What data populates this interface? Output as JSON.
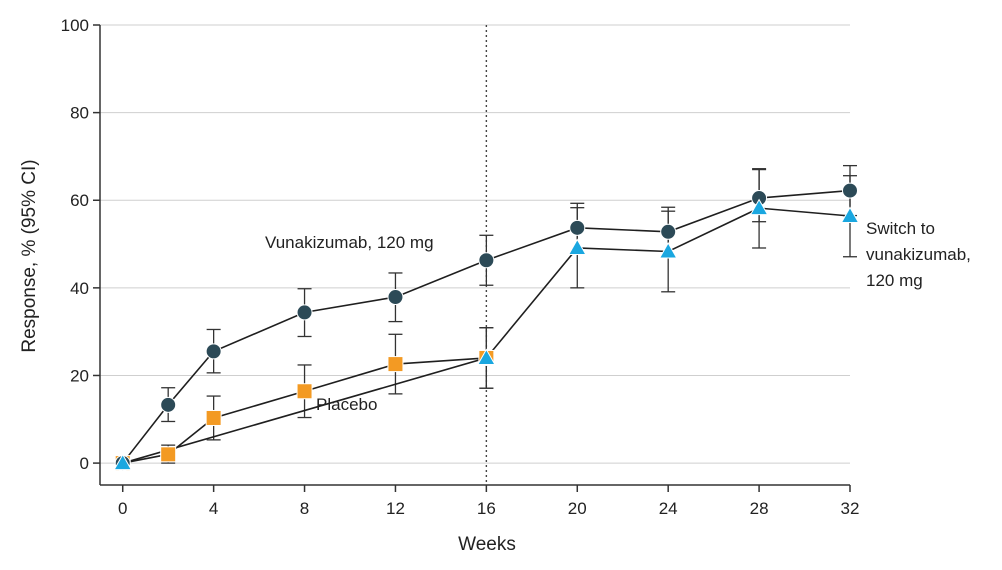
{
  "chart_data": {
    "type": "line",
    "title": "",
    "xlabel": "Weeks",
    "ylabel": "Response, % (95% CI)",
    "xlim": [
      -1,
      32
    ],
    "ylim": [
      -5,
      100
    ],
    "x_ticks": [
      0,
      4,
      8,
      12,
      16,
      20,
      24,
      28,
      32
    ],
    "y_ticks": [
      0,
      20,
      40,
      60,
      80,
      100
    ],
    "grid": "horizontal",
    "reference_line_x": 16,
    "colors": {
      "vunakizumab": "#2c4a57",
      "placebo": "#f39a23",
      "switch": "#1aa7e0"
    },
    "series": [
      {
        "name": "Vunakizumab, 120 mg",
        "marker": "circle",
        "x": [
          0,
          2,
          4,
          8,
          12,
          16,
          20,
          24,
          28,
          32
        ],
        "y": [
          0,
          13.3,
          25.5,
          34.4,
          37.9,
          46.3,
          53.7,
          52.8,
          60.5,
          62.2
        ],
        "ci_low": [
          0,
          9.5,
          20.6,
          28.9,
          32.3,
          40.6,
          48.2,
          47.3,
          55.1,
          56.5
        ],
        "ci_high": [
          0,
          17.2,
          30.5,
          39.8,
          43.4,
          52.0,
          59.3,
          58.4,
          67.0,
          67.9
        ]
      },
      {
        "name": "Placebo",
        "marker": "square",
        "x": [
          0,
          2,
          4,
          8,
          12,
          16
        ],
        "y": [
          0,
          2.0,
          10.3,
          16.4,
          22.6,
          24.0
        ],
        "ci_low": [
          0,
          0,
          5.3,
          10.4,
          15.8,
          17.1
        ],
        "ci_high": [
          0,
          4.1,
          15.3,
          22.4,
          29.4,
          30.9
        ]
      },
      {
        "name": "Switch to vunakizumab, 120 mg",
        "marker": "triangle",
        "x": [
          0,
          16,
          20,
          24,
          28,
          32
        ],
        "y": [
          0,
          24.0,
          49.1,
          48.3,
          58.2,
          56.4
        ],
        "ci_low": [
          0,
          17.1,
          40.0,
          39.1,
          49.1,
          47.1
        ],
        "ci_high": [
          0,
          30.9,
          58.3,
          57.5,
          67.2,
          65.6
        ]
      }
    ],
    "annotations": {
      "vunakizumab": "Vunakizumab, 120 mg",
      "placebo": "Placebo",
      "switch_line1": "Switch to",
      "switch_line2": "vunakizumab,",
      "switch_line3": "120 mg"
    }
  }
}
